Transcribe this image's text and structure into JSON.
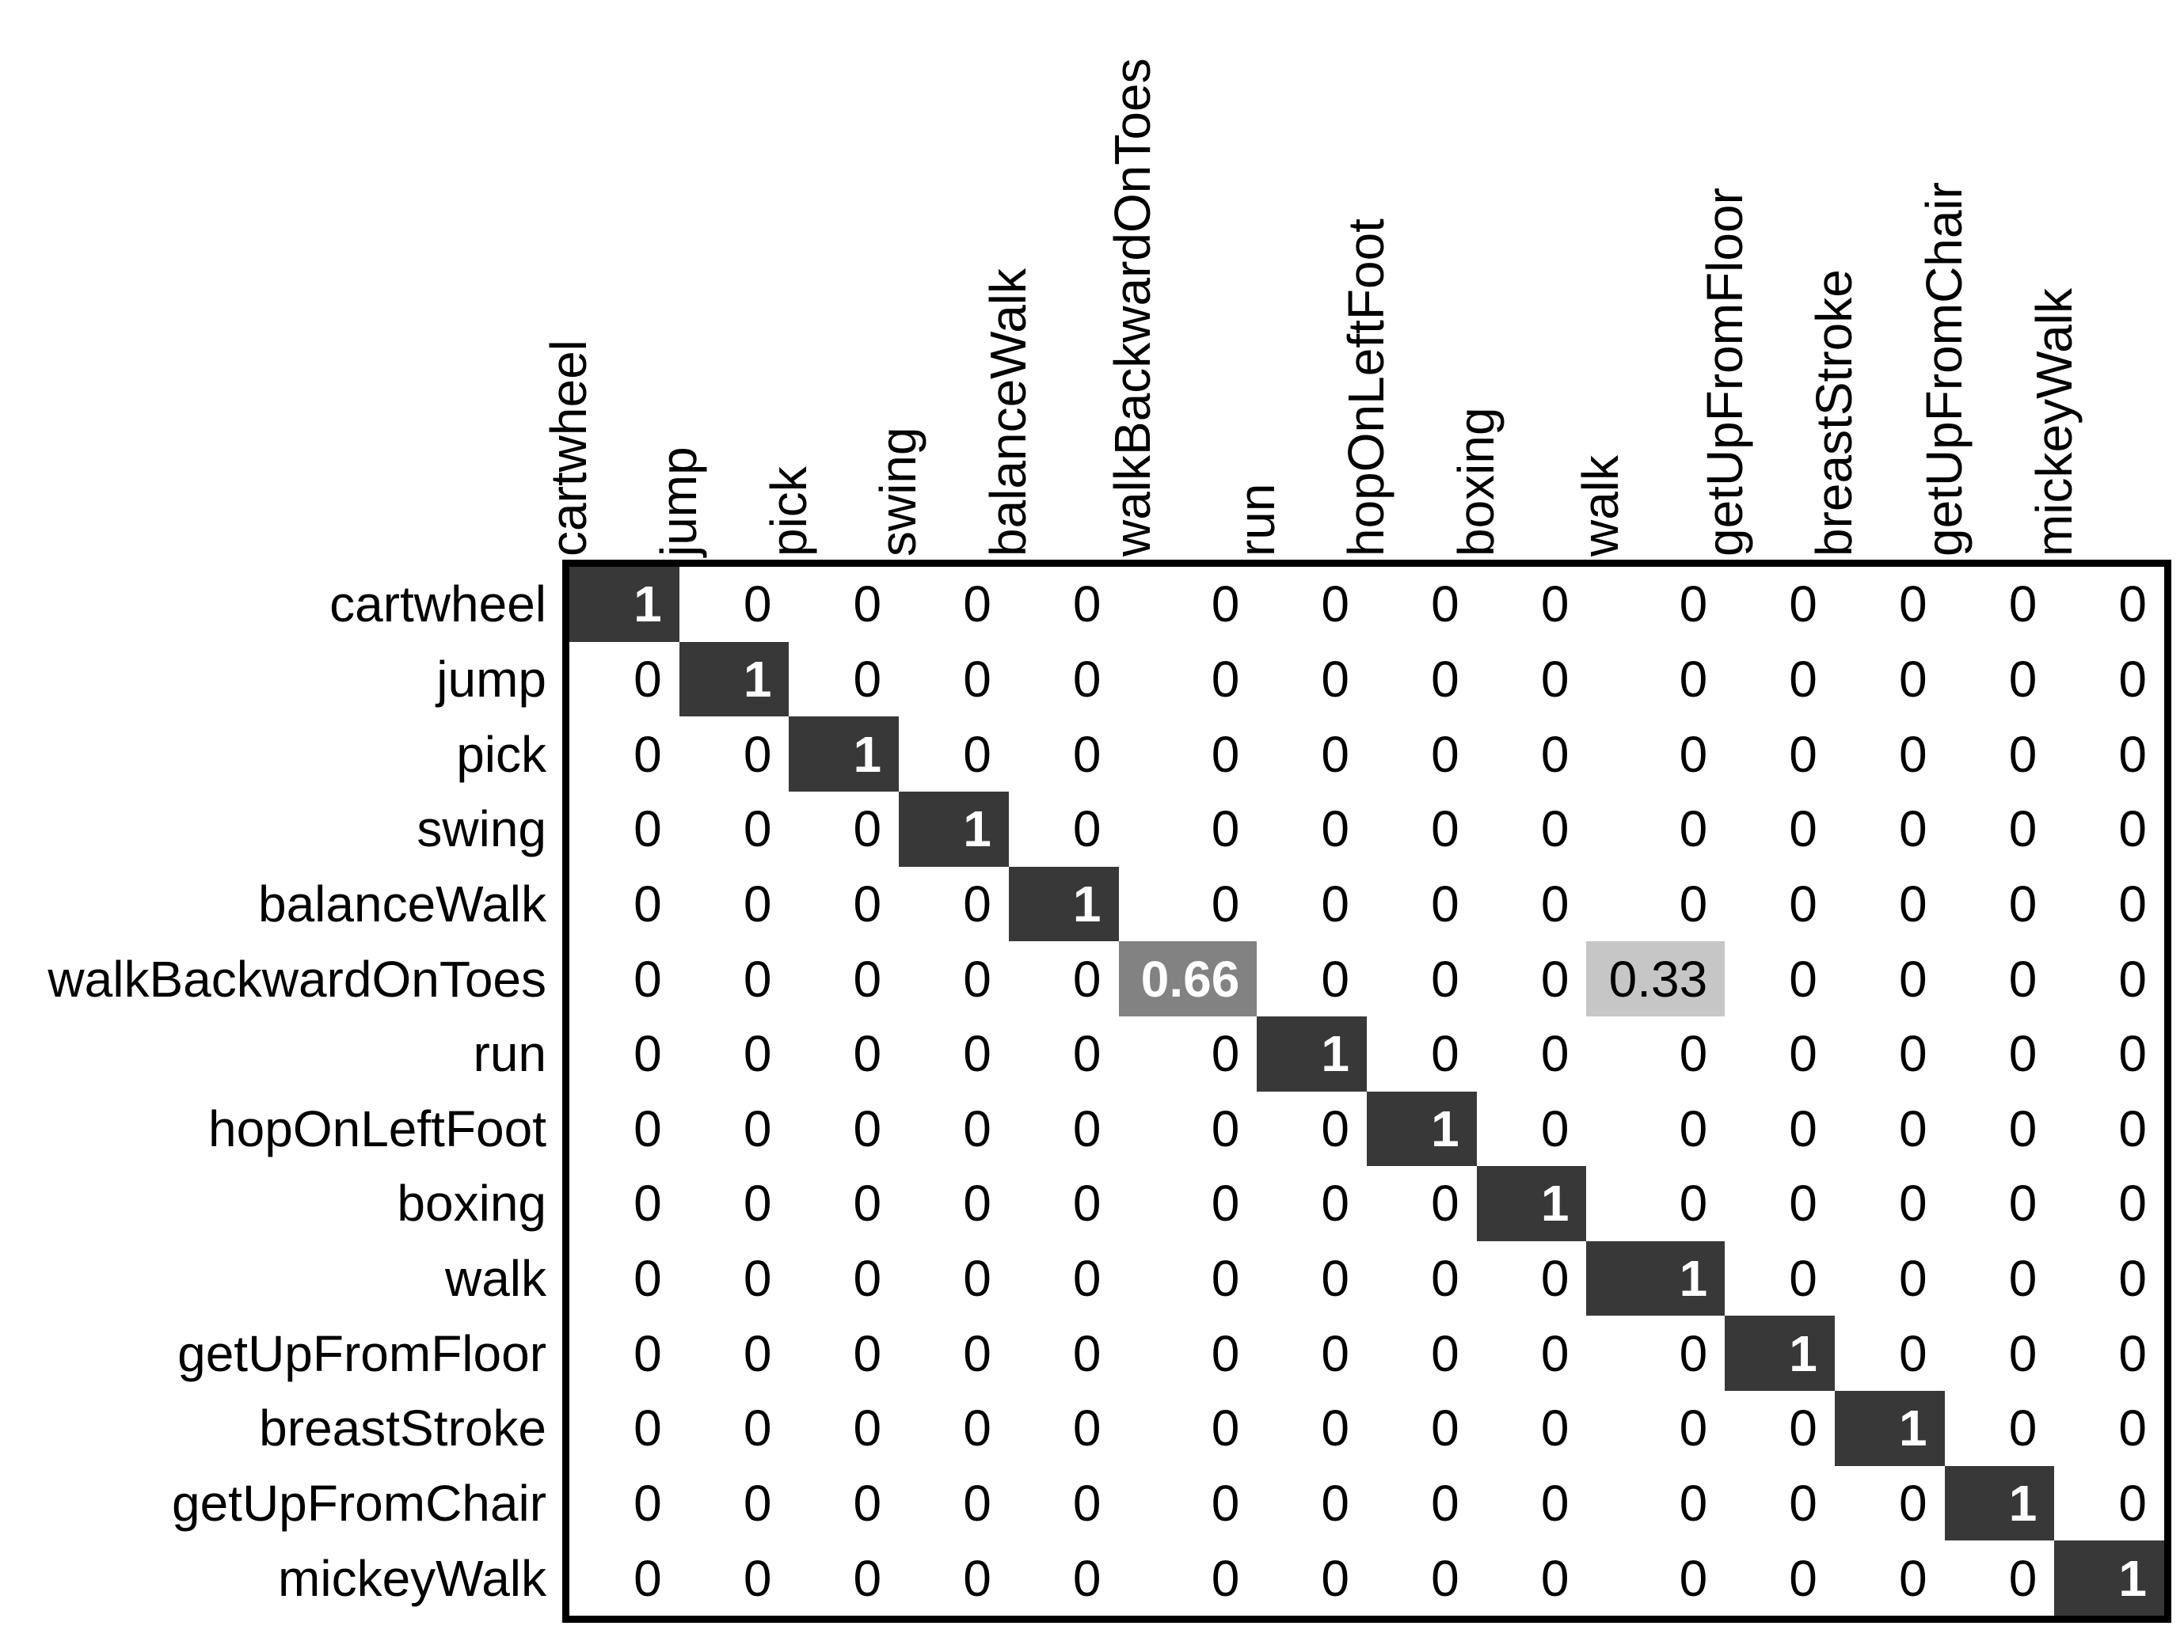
{
  "figure": {
    "kind": "confusion-matrix",
    "background_color": "#ffffff",
    "border_color": "#000000"
  },
  "chart_data": {
    "type": "heatmap",
    "title": "",
    "xlabel": "",
    "ylabel": "",
    "legend": false,
    "grid": false,
    "x_labels": [
      "cartwheel",
      "jump",
      "pick",
      "swing",
      "balanceWalk",
      "walkBackwardOnToes",
      "run",
      "hopOnLeftFoot",
      "boxing",
      "walk",
      "getUpFromFloor",
      "breastStroke",
      "getUpFromChair",
      "mickeyWalk"
    ],
    "y_labels": [
      "cartwheel",
      "jump",
      "pick",
      "swing",
      "balanceWalk",
      "walkBackwardOnToes",
      "run",
      "hopOnLeftFoot",
      "boxing",
      "walk",
      "getUpFromFloor",
      "breastStroke",
      "getUpFromChair",
      "mickeyWalk"
    ],
    "matrix": [
      [
        1,
        0,
        0,
        0,
        0,
        0,
        0,
        0,
        0,
        0,
        0,
        0,
        0,
        0
      ],
      [
        0,
        1,
        0,
        0,
        0,
        0,
        0,
        0,
        0,
        0,
        0,
        0,
        0,
        0
      ],
      [
        0,
        0,
        1,
        0,
        0,
        0,
        0,
        0,
        0,
        0,
        0,
        0,
        0,
        0
      ],
      [
        0,
        0,
        0,
        1,
        0,
        0,
        0,
        0,
        0,
        0,
        0,
        0,
        0,
        0
      ],
      [
        0,
        0,
        0,
        0,
        1,
        0,
        0,
        0,
        0,
        0,
        0,
        0,
        0,
        0
      ],
      [
        0,
        0,
        0,
        0,
        0,
        0.66,
        0,
        0,
        0,
        0.33,
        0,
        0,
        0,
        0
      ],
      [
        0,
        0,
        0,
        0,
        0,
        0,
        1,
        0,
        0,
        0,
        0,
        0,
        0,
        0
      ],
      [
        0,
        0,
        0,
        0,
        0,
        0,
        0,
        1,
        0,
        0,
        0,
        0,
        0,
        0
      ],
      [
        0,
        0,
        0,
        0,
        0,
        0,
        0,
        0,
        1,
        0,
        0,
        0,
        0,
        0
      ],
      [
        0,
        0,
        0,
        0,
        0,
        0,
        0,
        0,
        0,
        1,
        0,
        0,
        0,
        0
      ],
      [
        0,
        0,
        0,
        0,
        0,
        0,
        0,
        0,
        0,
        0,
        1,
        0,
        0,
        0
      ],
      [
        0,
        0,
        0,
        0,
        0,
        0,
        0,
        0,
        0,
        0,
        0,
        1,
        0,
        0
      ],
      [
        0,
        0,
        0,
        0,
        0,
        0,
        0,
        0,
        0,
        0,
        0,
        0,
        1,
        0
      ],
      [
        0,
        0,
        0,
        0,
        0,
        0,
        0,
        0,
        0,
        0,
        0,
        0,
        0,
        1
      ]
    ],
    "cell_colors": {
      "0": "#ffffff",
      "0.33": "#c6c6c6",
      "0.66": "#828282",
      "1": "#383838"
    },
    "text_colors": {
      "0": "#000000",
      "0.33": "#000000",
      "0.66": "#ffffff",
      "1": "#ffffff"
    }
  }
}
